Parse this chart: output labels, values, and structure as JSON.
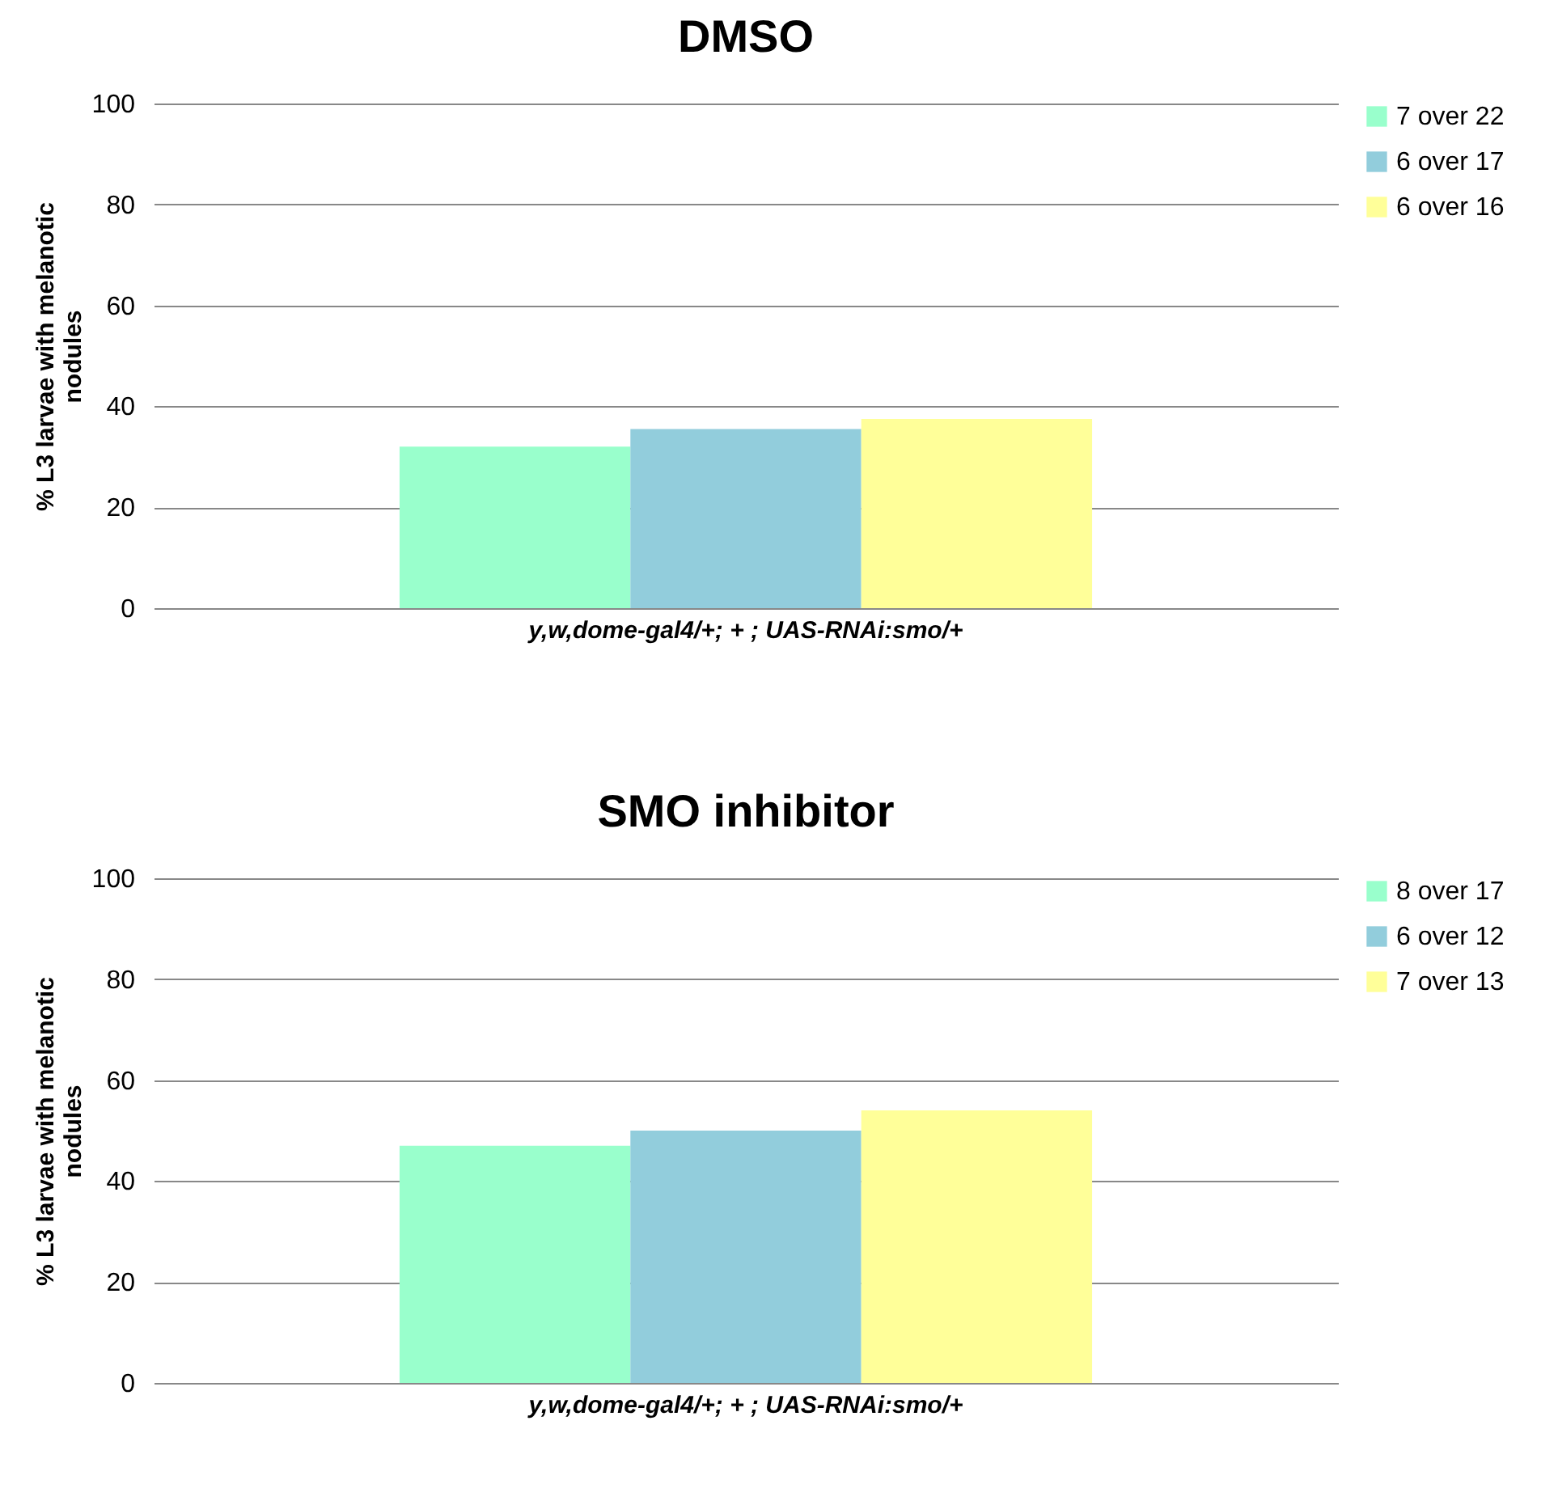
{
  "chart_data": [
    {
      "type": "bar",
      "title": "DMSO",
      "ylabel": "% L3 larvae with melanotic nodules",
      "categories": [
        "y,w,dome-gal4/+; + ; UAS-RNAi:smo/+"
      ],
      "series": [
        {
          "name": "7 over 22",
          "color": "#99ffcc",
          "values": [
            32
          ]
        },
        {
          "name": "6 over 17",
          "color": "#92cddc",
          "values": [
            35.5
          ]
        },
        {
          "name": "6 over 16",
          "color": "#ffff99",
          "values": [
            37.5
          ]
        }
      ],
      "ylim": [
        0,
        100
      ],
      "yticks": [
        0,
        20,
        40,
        60,
        80,
        100
      ],
      "grid": "y",
      "legend": "right"
    },
    {
      "type": "bar",
      "title": "SMO inhibitor",
      "ylabel": "% L3 larvae with melanotic nodules",
      "categories": [
        "y,w,dome-gal4/+; + ; UAS-RNAi:smo/+"
      ],
      "series": [
        {
          "name": "8 over 17",
          "color": "#99ffcc",
          "values": [
            47
          ]
        },
        {
          "name": "6 over 12",
          "color": "#92cddc",
          "values": [
            50
          ]
        },
        {
          "name": "7 over 13",
          "color": "#ffff99",
          "values": [
            54
          ]
        }
      ],
      "ylim": [
        0,
        100
      ],
      "yticks": [
        0,
        20,
        40,
        60,
        80,
        100
      ],
      "grid": "y",
      "legend": "right"
    }
  ]
}
